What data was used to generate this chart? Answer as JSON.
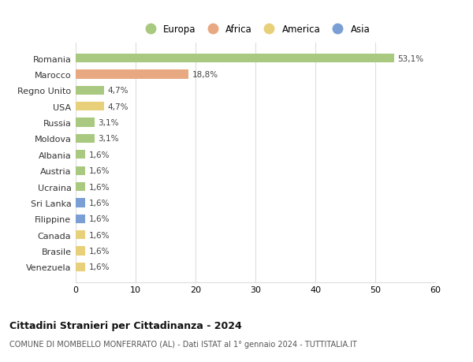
{
  "countries": [
    "Romania",
    "Marocco",
    "Regno Unito",
    "USA",
    "Russia",
    "Moldova",
    "Albania",
    "Austria",
    "Ucraina",
    "Sri Lanka",
    "Filippine",
    "Canada",
    "Brasile",
    "Venezuela"
  ],
  "values": [
    53.1,
    18.8,
    4.7,
    4.7,
    3.1,
    3.1,
    1.6,
    1.6,
    1.6,
    1.6,
    1.6,
    1.6,
    1.6,
    1.6
  ],
  "labels": [
    "53,1%",
    "18,8%",
    "4,7%",
    "4,7%",
    "3,1%",
    "3,1%",
    "1,6%",
    "1,6%",
    "1,6%",
    "1,6%",
    "1,6%",
    "1,6%",
    "1,6%",
    "1,6%"
  ],
  "continents": [
    "Europa",
    "Africa",
    "Europa",
    "America",
    "Europa",
    "Europa",
    "Europa",
    "Europa",
    "Europa",
    "Asia",
    "Asia",
    "America",
    "America",
    "America"
  ],
  "continent_colors": {
    "Europa": "#a8c97f",
    "Africa": "#e8a882",
    "America": "#e8d07a",
    "Asia": "#7a9fd4"
  },
  "legend_order": [
    "Europa",
    "Africa",
    "America",
    "Asia"
  ],
  "title": "Cittadini Stranieri per Cittadinanza - 2024",
  "subtitle": "COMUNE DI MOMBELLO MONFERRATO (AL) - Dati ISTAT al 1° gennaio 2024 - TUTTITALIA.IT",
  "xlim": [
    0,
    60
  ],
  "xticks": [
    0,
    10,
    20,
    30,
    40,
    50,
    60
  ],
  "background_color": "#ffffff",
  "grid_color": "#dddddd",
  "bar_height": 0.55
}
